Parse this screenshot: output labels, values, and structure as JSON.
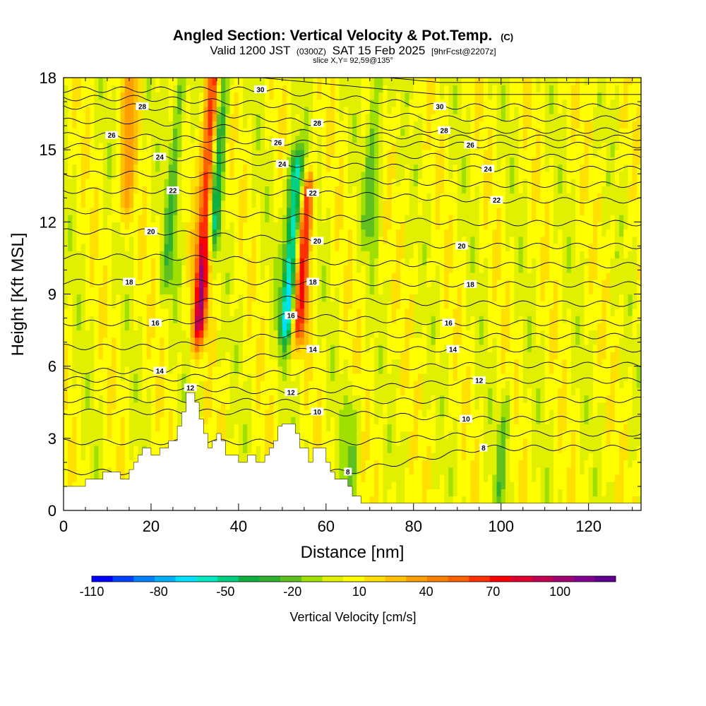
{
  "chart_data": {
    "type": "heatmap",
    "title": "Angled Section: Vertical Velocity & Pot.Temp.",
    "title_suffix": "(C)",
    "subtitle_parts": [
      "Valid 1200 JST",
      "(0300Z)",
      "SAT 15 Feb 2025",
      "[9hrFcst@2207z]"
    ],
    "slice_note": "slice X,Y= 92,59@135°",
    "xlabel": "Distance [nm]",
    "ylabel": "Height [Kft MSL]",
    "xlim": [
      0,
      132
    ],
    "ylim": [
      0,
      18
    ],
    "x_ticks": [
      "0",
      "20",
      "40",
      "60",
      "80",
      "100",
      "120"
    ],
    "x_tick_values": [
      0,
      20,
      40,
      60,
      80,
      100,
      120
    ],
    "y_ticks": [
      "0",
      "3",
      "6",
      "9",
      "12",
      "15",
      "18"
    ],
    "y_tick_values": [
      0,
      3,
      6,
      9,
      12,
      15,
      18
    ],
    "grid": false,
    "colorbar": {
      "label": "Vertical Velocity [cm/s]",
      "tick_labels": [
        "-110",
        "-80",
        "-50",
        "-20",
        "10",
        "40",
        "70",
        "100"
      ],
      "tick_values": [
        -110,
        -80,
        -50,
        -20,
        10,
        40,
        70,
        100
      ],
      "min": -110,
      "max": 125,
      "colors": [
        "#0000ff",
        "#0040ff",
        "#0080ff",
        "#00b0ff",
        "#00e0ff",
        "#00e8c0",
        "#00d080",
        "#10b040",
        "#30b030",
        "#60c020",
        "#a0e000",
        "#e0f000",
        "#ffff00",
        "#ffe000",
        "#ffc000",
        "#ffa000",
        "#ff8000",
        "#ff6000",
        "#ff3000",
        "#ff0000",
        "#e00030",
        "#c00050",
        "#a00070",
        "#800090",
        "#600090"
      ]
    },
    "background_velocity": 5,
    "velocity_features": [
      {
        "x": 31,
        "y_range": [
          8,
          18
        ],
        "value": 85,
        "note": "updraft column"
      },
      {
        "x": 34,
        "y_range": [
          12,
          18
        ],
        "value": -60,
        "note": "downdraft column"
      },
      {
        "x": 24,
        "y_range": [
          10,
          18
        ],
        "value": -25
      },
      {
        "x": 51,
        "y_range": [
          8,
          14
        ],
        "value": -70
      },
      {
        "x": 54,
        "y_range": [
          8,
          13
        ],
        "value": 60
      },
      {
        "x": 70,
        "y_range": [
          12,
          18
        ],
        "value": -25
      },
      {
        "x": 14,
        "y_range": [
          13,
          18
        ],
        "value": 30
      },
      {
        "x": 65,
        "y_range": [
          0.5,
          4
        ],
        "value": -20
      },
      {
        "x": 100,
        "y_range": [
          1,
          4
        ],
        "value": -20
      }
    ],
    "pot_temp_labels": [
      {
        "label": "8",
        "x": 65,
        "y": 1.6
      },
      {
        "label": "8",
        "x": 96,
        "y": 2.6
      },
      {
        "label": "10",
        "x": 58,
        "y": 4.1
      },
      {
        "label": "10",
        "x": 92,
        "y": 3.8
      },
      {
        "label": "12",
        "x": 29,
        "y": 5.1
      },
      {
        "label": "12",
        "x": 52,
        "y": 4.9
      },
      {
        "label": "12",
        "x": 95,
        "y": 5.4
      },
      {
        "label": "14",
        "x": 22,
        "y": 5.8
      },
      {
        "label": "14",
        "x": 57,
        "y": 6.7
      },
      {
        "label": "14",
        "x": 89,
        "y": 6.7
      },
      {
        "label": "16",
        "x": 21,
        "y": 7.8
      },
      {
        "label": "16",
        "x": 52,
        "y": 8.1
      },
      {
        "label": "16",
        "x": 88,
        "y": 7.8
      },
      {
        "label": "18",
        "x": 15,
        "y": 9.5
      },
      {
        "label": "18",
        "x": 57,
        "y": 9.5
      },
      {
        "label": "18",
        "x": 93,
        "y": 9.4
      },
      {
        "label": "20",
        "x": 20,
        "y": 11.6
      },
      {
        "label": "20",
        "x": 58,
        "y": 11.2
      },
      {
        "label": "20",
        "x": 91,
        "y": 11.0
      },
      {
        "label": "22",
        "x": 25,
        "y": 13.3
      },
      {
        "label": "22",
        "x": 57,
        "y": 13.2
      },
      {
        "label": "22",
        "x": 99,
        "y": 12.9
      },
      {
        "label": "24",
        "x": 22,
        "y": 14.7
      },
      {
        "label": "24",
        "x": 50,
        "y": 14.4
      },
      {
        "label": "24",
        "x": 97,
        "y": 14.2
      },
      {
        "label": "26",
        "x": 11,
        "y": 15.6
      },
      {
        "label": "26",
        "x": 49,
        "y": 15.3
      },
      {
        "label": "26",
        "x": 93,
        "y": 15.2
      },
      {
        "label": "28",
        "x": 18,
        "y": 16.8
      },
      {
        "label": "28",
        "x": 58,
        "y": 16.1
      },
      {
        "label": "28",
        "x": 87,
        "y": 15.8
      },
      {
        "label": "30",
        "x": 45,
        "y": 17.5
      },
      {
        "label": "30",
        "x": 86,
        "y": 16.8
      }
    ],
    "terrain": [
      [
        0,
        1.0
      ],
      [
        5,
        1.0
      ],
      [
        5,
        1.3
      ],
      [
        9,
        1.3
      ],
      [
        9,
        1.6
      ],
      [
        13,
        1.6
      ],
      [
        13,
        1.3
      ],
      [
        15,
        1.3
      ],
      [
        15,
        1.7
      ],
      [
        16,
        1.7
      ],
      [
        16,
        2.0
      ],
      [
        17,
        2.0
      ],
      [
        17,
        2.3
      ],
      [
        18,
        2.3
      ],
      [
        18,
        2.6
      ],
      [
        20,
        2.6
      ],
      [
        20,
        2.3
      ],
      [
        22,
        2.3
      ],
      [
        22,
        2.6
      ],
      [
        24,
        2.6
      ],
      [
        24,
        2.9
      ],
      [
        26,
        2.9
      ],
      [
        26,
        3.5
      ],
      [
        27,
        3.5
      ],
      [
        27,
        4.1
      ],
      [
        28,
        4.1
      ],
      [
        28,
        4.9
      ],
      [
        30,
        4.9
      ],
      [
        30,
        4.5
      ],
      [
        31,
        4.5
      ],
      [
        31,
        3.8
      ],
      [
        32,
        3.8
      ],
      [
        32,
        3.2
      ],
      [
        33,
        3.2
      ],
      [
        33,
        2.6
      ],
      [
        34,
        2.6
      ],
      [
        34,
        2.9
      ],
      [
        35,
        2.9
      ],
      [
        35,
        3.2
      ],
      [
        36,
        3.2
      ],
      [
        36,
        2.9
      ],
      [
        37,
        2.9
      ],
      [
        37,
        2.3
      ],
      [
        40,
        2.3
      ],
      [
        40,
        2.0
      ],
      [
        42,
        2.0
      ],
      [
        42,
        2.3
      ],
      [
        44,
        2.3
      ],
      [
        44,
        2.0
      ],
      [
        46,
        2.0
      ],
      [
        46,
        2.3
      ],
      [
        47,
        2.3
      ],
      [
        47,
        2.6
      ],
      [
        48,
        2.6
      ],
      [
        48,
        2.9
      ],
      [
        49,
        2.9
      ],
      [
        49,
        3.5
      ],
      [
        50,
        3.5
      ],
      [
        50,
        3.6
      ],
      [
        53,
        3.6
      ],
      [
        53,
        3.2
      ],
      [
        54,
        3.2
      ],
      [
        54,
        2.6
      ],
      [
        56,
        2.6
      ],
      [
        56,
        2.0
      ],
      [
        57,
        2.0
      ],
      [
        57,
        2.6
      ],
      [
        60,
        2.6
      ],
      [
        60,
        2.0
      ],
      [
        61,
        2.0
      ],
      [
        61,
        1.6
      ],
      [
        62,
        1.6
      ],
      [
        62,
        1.3
      ],
      [
        65,
        1.3
      ],
      [
        65,
        1.0
      ],
      [
        66,
        1.0
      ],
      [
        66,
        0.6
      ],
      [
        68,
        0.6
      ],
      [
        68,
        0.3
      ],
      [
        132,
        0.3
      ],
      [
        132,
        0
      ],
      [
        0,
        0
      ]
    ]
  }
}
